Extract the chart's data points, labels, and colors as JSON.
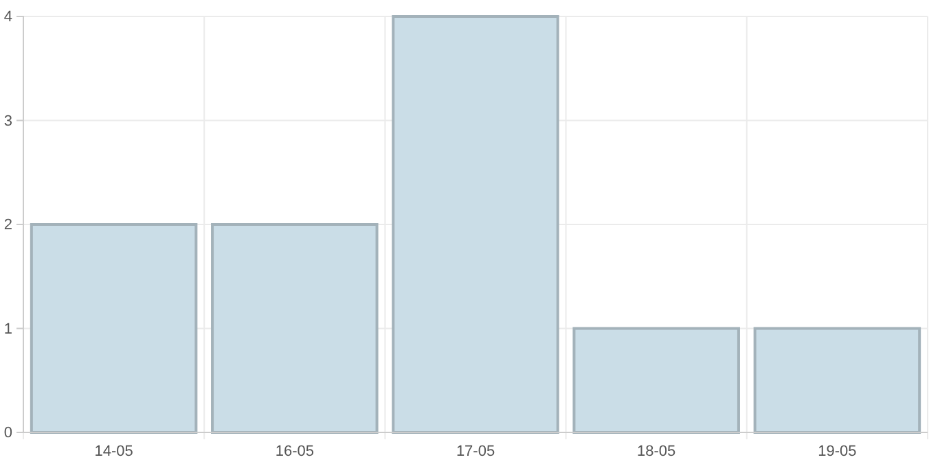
{
  "chart_data": {
    "type": "bar",
    "categories": [
      "14-05",
      "16-05",
      "17-05",
      "18-05",
      "19-05"
    ],
    "values": [
      2,
      2,
      4,
      1,
      1
    ],
    "color": "#cadde7",
    "ylim": [
      0,
      4
    ],
    "yticks": [
      0,
      1,
      2,
      3,
      4
    ],
    "grid": true
  }
}
